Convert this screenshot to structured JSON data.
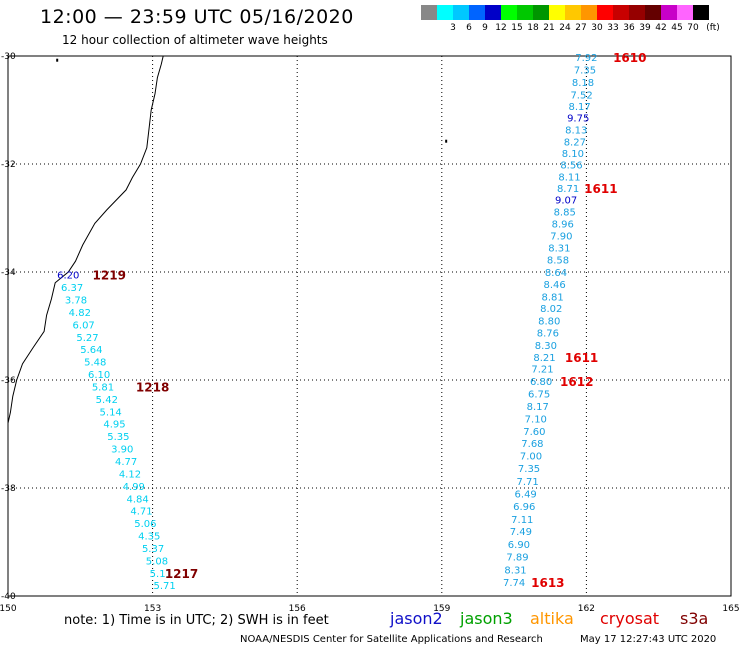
{
  "header": {
    "title": "12:00 — 23:59 UTC 05/16/2020",
    "subtitle": "12 hour collection of altimeter wave heights"
  },
  "legend": {
    "unit": "(ft)",
    "bins": [
      {
        "label": "",
        "color": "#888888"
      },
      {
        "label": "3",
        "color": "#00ffff"
      },
      {
        "label": "6",
        "color": "#00c8ff"
      },
      {
        "label": "9",
        "color": "#0064ff"
      },
      {
        "label": "12",
        "color": "#0000c8"
      },
      {
        "label": "15",
        "color": "#00ff00"
      },
      {
        "label": "18",
        "color": "#00c800"
      },
      {
        "label": "21",
        "color": "#009600"
      },
      {
        "label": "24",
        "color": "#ffff00"
      },
      {
        "label": "27",
        "color": "#ffc800"
      },
      {
        "label": "30",
        "color": "#ff9600"
      },
      {
        "label": "33",
        "color": "#ff0000"
      },
      {
        "label": "36",
        "color": "#c80000"
      },
      {
        "label": "39",
        "color": "#960000"
      },
      {
        "label": "42",
        "color": "#640000"
      },
      {
        "label": "45",
        "color": "#c800c8"
      },
      {
        "label": "70",
        "color": "#ff64ff"
      },
      {
        "label": "",
        "color": "#000000"
      }
    ]
  },
  "map": {
    "lon_range": [
      150,
      165
    ],
    "lat_range": [
      -40,
      -30
    ],
    "lon_ticks": [
      "150",
      "153",
      "156",
      "159",
      "162",
      "165"
    ],
    "lat_ticks": [
      {
        "lat": -30,
        "label": "-30"
      },
      {
        "lat": -32,
        "label": "-32"
      },
      {
        "lat": -34,
        "label": "-34"
      },
      {
        "lat": -36,
        "label": "-36"
      },
      {
        "lat": -38,
        "label": "-38"
      },
      {
        "lat": -40,
        "label": "-40"
      }
    ],
    "colors": {
      "cyan_text": "#00d0f0",
      "mid_blue": "#1aa0e0",
      "dark_blue": "#0000c8",
      "time_red": "#e00000",
      "time_dark": "#800000"
    }
  },
  "tracks": [
    {
      "name": "east-track",
      "readings": [
        {
          "lon": 162.0,
          "lat": -30.02,
          "value": "7.92",
          "color": "#1aa0e0"
        },
        {
          "lon": 161.97,
          "lat": -30.25,
          "value": "7.35",
          "color": "#1aa0e0"
        },
        {
          "lon": 161.93,
          "lat": -30.48,
          "value": "8.18",
          "color": "#1aa0e0"
        },
        {
          "lon": 161.9,
          "lat": -30.71,
          "value": "7.52",
          "color": "#1aa0e0"
        },
        {
          "lon": 161.86,
          "lat": -30.93,
          "value": "8.17",
          "color": "#1aa0e0"
        },
        {
          "lon": 161.83,
          "lat": -31.14,
          "value": "9.75",
          "color": "#0000c8"
        },
        {
          "lon": 161.79,
          "lat": -31.36,
          "value": "8.13",
          "color": "#1aa0e0"
        },
        {
          "lon": 161.76,
          "lat": -31.58,
          "value": "8.27",
          "color": "#1aa0e0"
        },
        {
          "lon": 161.72,
          "lat": -31.8,
          "value": "8.10",
          "color": "#1aa0e0"
        },
        {
          "lon": 161.69,
          "lat": -32.01,
          "value": "8.56",
          "color": "#1aa0e0"
        },
        {
          "lon": 161.65,
          "lat": -32.23,
          "value": "8.11",
          "color": "#1aa0e0"
        },
        {
          "lon": 161.62,
          "lat": -32.44,
          "value": "8.71",
          "color": "#1aa0e0"
        },
        {
          "lon": 161.58,
          "lat": -32.66,
          "value": "9.07",
          "color": "#0000c8"
        },
        {
          "lon": 161.55,
          "lat": -32.88,
          "value": "8.85",
          "color": "#1aa0e0"
        },
        {
          "lon": 161.51,
          "lat": -33.1,
          "value": "8.96",
          "color": "#1aa0e0"
        },
        {
          "lon": 161.48,
          "lat": -33.32,
          "value": "7.90",
          "color": "#1aa0e0"
        },
        {
          "lon": 161.44,
          "lat": -33.55,
          "value": "8.31",
          "color": "#1aa0e0"
        },
        {
          "lon": 161.41,
          "lat": -33.77,
          "value": "8.58",
          "color": "#1aa0e0"
        },
        {
          "lon": 161.37,
          "lat": -34.0,
          "value": "8.64",
          "color": "#1aa0e0"
        },
        {
          "lon": 161.34,
          "lat": -34.22,
          "value": "8.46",
          "color": "#1aa0e0"
        },
        {
          "lon": 161.3,
          "lat": -34.45,
          "value": "8.81",
          "color": "#1aa0e0"
        },
        {
          "lon": 161.27,
          "lat": -34.67,
          "value": "8.02",
          "color": "#1aa0e0"
        },
        {
          "lon": 161.23,
          "lat": -34.9,
          "value": "8.80",
          "color": "#1aa0e0"
        },
        {
          "lon": 161.2,
          "lat": -35.12,
          "value": "8.76",
          "color": "#1aa0e0"
        },
        {
          "lon": 161.16,
          "lat": -35.35,
          "value": "8.30",
          "color": "#1aa0e0"
        },
        {
          "lon": 161.13,
          "lat": -35.57,
          "value": "8.21",
          "color": "#1aa0e0"
        },
        {
          "lon": 161.09,
          "lat": -35.79,
          "value": "7.21",
          "color": "#1aa0e0"
        },
        {
          "lon": 161.06,
          "lat": -36.02,
          "value": "6.80",
          "color": "#1aa0e0"
        },
        {
          "lon": 161.02,
          "lat": -36.25,
          "value": "6.75",
          "color": "#1aa0e0"
        },
        {
          "lon": 160.99,
          "lat": -36.48,
          "value": "8.17",
          "color": "#1aa0e0"
        },
        {
          "lon": 160.95,
          "lat": -36.71,
          "value": "7.10",
          "color": "#1aa0e0"
        },
        {
          "lon": 160.92,
          "lat": -36.94,
          "value": "7.60",
          "color": "#1aa0e0"
        },
        {
          "lon": 160.88,
          "lat": -37.17,
          "value": "7.68",
          "color": "#1aa0e0"
        },
        {
          "lon": 160.85,
          "lat": -37.4,
          "value": "7.00",
          "color": "#1aa0e0"
        },
        {
          "lon": 160.81,
          "lat": -37.63,
          "value": "7.35",
          "color": "#1aa0e0"
        },
        {
          "lon": 160.78,
          "lat": -37.87,
          "value": "7.71",
          "color": "#1aa0e0"
        },
        {
          "lon": 160.74,
          "lat": -38.1,
          "value": "6.49",
          "color": "#1aa0e0"
        },
        {
          "lon": 160.71,
          "lat": -38.33,
          "value": "6.96",
          "color": "#1aa0e0"
        },
        {
          "lon": 160.67,
          "lat": -38.57,
          "value": "7.11",
          "color": "#1aa0e0"
        },
        {
          "lon": 160.64,
          "lat": -38.8,
          "value": "7.49",
          "color": "#1aa0e0"
        },
        {
          "lon": 160.6,
          "lat": -39.04,
          "value": "6.90",
          "color": "#1aa0e0"
        },
        {
          "lon": 160.57,
          "lat": -39.27,
          "value": "7.89",
          "color": "#1aa0e0"
        },
        {
          "lon": 160.53,
          "lat": -39.51,
          "value": "8.31",
          "color": "#1aa0e0"
        },
        {
          "lon": 160.5,
          "lat": -39.74,
          "value": "7.74",
          "color": "#1aa0e0"
        }
      ],
      "times": [
        {
          "lon": 162.9,
          "lat": -30.02,
          "value": "1610",
          "color": "#e00000"
        },
        {
          "lon": 162.3,
          "lat": -32.44,
          "value": "1611",
          "color": "#e00000"
        },
        {
          "lon": 161.9,
          "lat": -35.57,
          "value": "1611",
          "color": "#e00000"
        },
        {
          "lon": 161.8,
          "lat": -36.02,
          "value": "1612",
          "color": "#e00000"
        },
        {
          "lon": 161.2,
          "lat": -39.74,
          "value": "1613",
          "color": "#e00000"
        }
      ]
    },
    {
      "name": "west-track",
      "readings": [
        {
          "lon": 151.25,
          "lat": -34.05,
          "value": "6.20",
          "color": "#0000c8"
        },
        {
          "lon": 151.33,
          "lat": -34.28,
          "value": "6.37",
          "color": "#00d0f0"
        },
        {
          "lon": 151.41,
          "lat": -34.51,
          "value": "3.78",
          "color": "#00d0f0"
        },
        {
          "lon": 151.49,
          "lat": -34.74,
          "value": "4.82",
          "color": "#00d0f0"
        },
        {
          "lon": 151.57,
          "lat": -34.97,
          "value": "6.07",
          "color": "#00d0f0"
        },
        {
          "lon": 151.65,
          "lat": -35.2,
          "value": "5.27",
          "color": "#00d0f0"
        },
        {
          "lon": 151.73,
          "lat": -35.43,
          "value": "5.64",
          "color": "#00d0f0"
        },
        {
          "lon": 151.81,
          "lat": -35.66,
          "value": "5.48",
          "color": "#00d0f0"
        },
        {
          "lon": 151.89,
          "lat": -35.89,
          "value": "6.10",
          "color": "#00d0f0"
        },
        {
          "lon": 151.97,
          "lat": -36.12,
          "value": "5.81",
          "color": "#00d0f0"
        },
        {
          "lon": 152.05,
          "lat": -36.35,
          "value": "5.42",
          "color": "#00d0f0"
        },
        {
          "lon": 152.13,
          "lat": -36.58,
          "value": "5.14",
          "color": "#00d0f0"
        },
        {
          "lon": 152.21,
          "lat": -36.81,
          "value": "4.95",
          "color": "#00d0f0"
        },
        {
          "lon": 152.29,
          "lat": -37.04,
          "value": "5.35",
          "color": "#00d0f0"
        },
        {
          "lon": 152.37,
          "lat": -37.27,
          "value": "3.90",
          "color": "#00d0f0"
        },
        {
          "lon": 152.45,
          "lat": -37.5,
          "value": "4.77",
          "color": "#00d0f0"
        },
        {
          "lon": 152.53,
          "lat": -37.73,
          "value": "4.12",
          "color": "#00d0f0"
        },
        {
          "lon": 152.61,
          "lat": -37.96,
          "value": "4.99",
          "color": "#00d0f0"
        },
        {
          "lon": 152.69,
          "lat": -38.19,
          "value": "4.84",
          "color": "#00d0f0"
        },
        {
          "lon": 152.77,
          "lat": -38.42,
          "value": "4.71",
          "color": "#00d0f0"
        },
        {
          "lon": 152.85,
          "lat": -38.65,
          "value": "5.06",
          "color": "#00d0f0"
        },
        {
          "lon": 152.93,
          "lat": -38.88,
          "value": "4.35",
          "color": "#00d0f0"
        },
        {
          "lon": 153.01,
          "lat": -39.11,
          "value": "5.37",
          "color": "#00d0f0"
        },
        {
          "lon": 153.09,
          "lat": -39.34,
          "value": "5.08",
          "color": "#00d0f0"
        },
        {
          "lon": 153.17,
          "lat": -39.57,
          "value": "5.11",
          "color": "#00d0f0"
        },
        {
          "lon": 153.25,
          "lat": -39.8,
          "value": "5.71",
          "color": "#00d0f0"
        }
      ],
      "times": [
        {
          "lon": 152.1,
          "lat": -34.05,
          "value": "1219",
          "color": "#800000"
        },
        {
          "lon": 153.0,
          "lat": -36.12,
          "value": "1218",
          "color": "#800000"
        },
        {
          "lon": 153.6,
          "lat": -39.57,
          "value": "1217",
          "color": "#800000"
        }
      ]
    }
  ],
  "coastline": [
    [
      153.22,
      -30.0
    ],
    [
      153.18,
      -30.15
    ],
    [
      153.1,
      -30.4
    ],
    [
      153.05,
      -30.7
    ],
    [
      152.97,
      -31.0
    ],
    [
      152.92,
      -31.4
    ],
    [
      152.88,
      -31.7
    ],
    [
      152.75,
      -32.0
    ],
    [
      152.58,
      -32.25
    ],
    [
      152.45,
      -32.48
    ],
    [
      152.05,
      -32.85
    ],
    [
      151.8,
      -33.1
    ],
    [
      151.55,
      -33.5
    ],
    [
      151.4,
      -33.8
    ],
    [
      151.25,
      -34.0
    ],
    [
      150.98,
      -34.2
    ],
    [
      150.9,
      -34.5
    ],
    [
      150.8,
      -34.8
    ],
    [
      150.75,
      -35.1
    ],
    [
      150.52,
      -35.4
    ],
    [
      150.3,
      -35.7
    ],
    [
      150.18,
      -36.0
    ],
    [
      150.1,
      -36.3
    ],
    [
      150.05,
      -36.6
    ],
    [
      150.0,
      -36.8
    ]
  ],
  "islands": [
    {
      "lon": 151.0,
      "lat": -30.05
    },
    {
      "lon": 159.07,
      "lat": -31.55
    }
  ],
  "footer": {
    "note": "note:  1) Time is in UTC;  2) SWH is in feet",
    "satellites": [
      {
        "name": "jason2",
        "color": "#1010c8"
      },
      {
        "name": "jason3",
        "color": "#00a000"
      },
      {
        "name": "altika",
        "color": "#ff9600"
      },
      {
        "name": "cryosat",
        "color": "#e00000"
      },
      {
        "name": "s3a",
        "color": "#800000"
      }
    ],
    "credit": "NOAA/NESDIS Center for Satellite Applications and Research",
    "timestamp": "May 17 12:27:43 UTC 2020"
  }
}
